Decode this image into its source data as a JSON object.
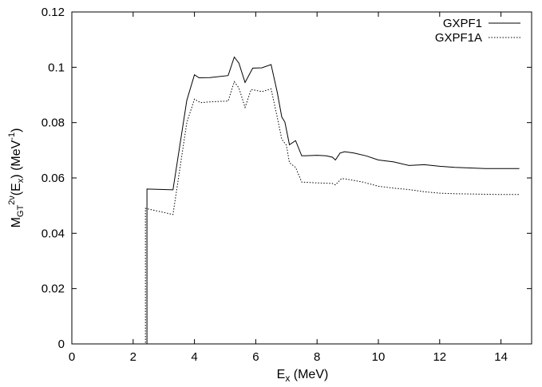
{
  "chart_data": {
    "type": "line",
    "title": "",
    "xlabel": {
      "base": "E",
      "sub": "x",
      "rest": " (MeV)"
    },
    "ylabel": {
      "base": "M",
      "sub": "GT",
      "sup1": "2ν",
      "mid": "(E",
      "sub2": "x",
      "mid2": ") (MeV",
      "sup2": "-1",
      "end": ")"
    },
    "xlim": [
      0,
      15
    ],
    "ylim": [
      0,
      0.12
    ],
    "xticks": [
      0,
      2,
      4,
      6,
      8,
      10,
      12,
      14
    ],
    "xtick_labels": [
      "0",
      "2",
      "4",
      "6",
      "8",
      "10",
      "12",
      "14"
    ],
    "yticks": [
      0,
      0.02,
      0.04,
      0.06,
      0.08,
      0.1,
      0.12
    ],
    "ytick_labels": [
      "0",
      "0.02",
      "0.04",
      "0.06",
      "0.08",
      "0.1",
      "0.12"
    ],
    "grid": false,
    "legend_position": "top-right",
    "series": [
      {
        "name": "GXPF1",
        "style": "solid",
        "color": "#000000",
        "points": [
          [
            2.4,
            0
          ],
          [
            2.45,
            0
          ],
          [
            2.45,
            0.056
          ],
          [
            3.3,
            0.0557
          ],
          [
            3.75,
            0.088
          ],
          [
            4.0,
            0.0973
          ],
          [
            4.15,
            0.0962
          ],
          [
            4.5,
            0.0963
          ],
          [
            5.1,
            0.097
          ],
          [
            5.3,
            0.1037
          ],
          [
            5.45,
            0.1015
          ],
          [
            5.65,
            0.0945
          ],
          [
            5.9,
            0.0997
          ],
          [
            6.2,
            0.0998
          ],
          [
            6.5,
            0.101
          ],
          [
            6.7,
            0.091
          ],
          [
            6.85,
            0.082
          ],
          [
            6.95,
            0.0802
          ],
          [
            7.1,
            0.072
          ],
          [
            7.3,
            0.0735
          ],
          [
            7.5,
            0.068
          ],
          [
            8.0,
            0.0682
          ],
          [
            8.3,
            0.068
          ],
          [
            8.5,
            0.0675
          ],
          [
            8.6,
            0.0665
          ],
          [
            8.75,
            0.069
          ],
          [
            8.9,
            0.0695
          ],
          [
            9.2,
            0.069
          ],
          [
            9.6,
            0.068
          ],
          [
            10.0,
            0.0665
          ],
          [
            10.5,
            0.0658
          ],
          [
            11.0,
            0.0645
          ],
          [
            11.5,
            0.0648
          ],
          [
            12.0,
            0.0642
          ],
          [
            12.5,
            0.0638
          ],
          [
            13.0,
            0.0636
          ],
          [
            13.5,
            0.0634
          ],
          [
            14.0,
            0.0634
          ],
          [
            14.6,
            0.0634
          ]
        ]
      },
      {
        "name": "GXPF1A",
        "style": "dotted",
        "color": "#000000",
        "points": [
          [
            2.35,
            0
          ],
          [
            2.4,
            0
          ],
          [
            2.4,
            0.049
          ],
          [
            3.3,
            0.0468
          ],
          [
            3.75,
            0.08
          ],
          [
            4.0,
            0.0885
          ],
          [
            4.2,
            0.0872
          ],
          [
            4.5,
            0.0875
          ],
          [
            5.1,
            0.0878
          ],
          [
            5.3,
            0.0948
          ],
          [
            5.45,
            0.0925
          ],
          [
            5.65,
            0.0855
          ],
          [
            5.85,
            0.092
          ],
          [
            6.2,
            0.0912
          ],
          [
            6.5,
            0.0922
          ],
          [
            6.7,
            0.082
          ],
          [
            6.85,
            0.074
          ],
          [
            7.0,
            0.0718
          ],
          [
            7.1,
            0.0655
          ],
          [
            7.3,
            0.0638
          ],
          [
            7.5,
            0.0585
          ],
          [
            8.0,
            0.0582
          ],
          [
            8.5,
            0.058
          ],
          [
            8.6,
            0.0575
          ],
          [
            8.8,
            0.0598
          ],
          [
            9.0,
            0.0595
          ],
          [
            9.5,
            0.0585
          ],
          [
            10.0,
            0.057
          ],
          [
            10.5,
            0.0563
          ],
          [
            11.0,
            0.0558
          ],
          [
            11.5,
            0.055
          ],
          [
            12.0,
            0.0545
          ],
          [
            12.5,
            0.0543
          ],
          [
            13.0,
            0.0542
          ],
          [
            14.0,
            0.054
          ],
          [
            14.6,
            0.054
          ]
        ]
      }
    ]
  }
}
